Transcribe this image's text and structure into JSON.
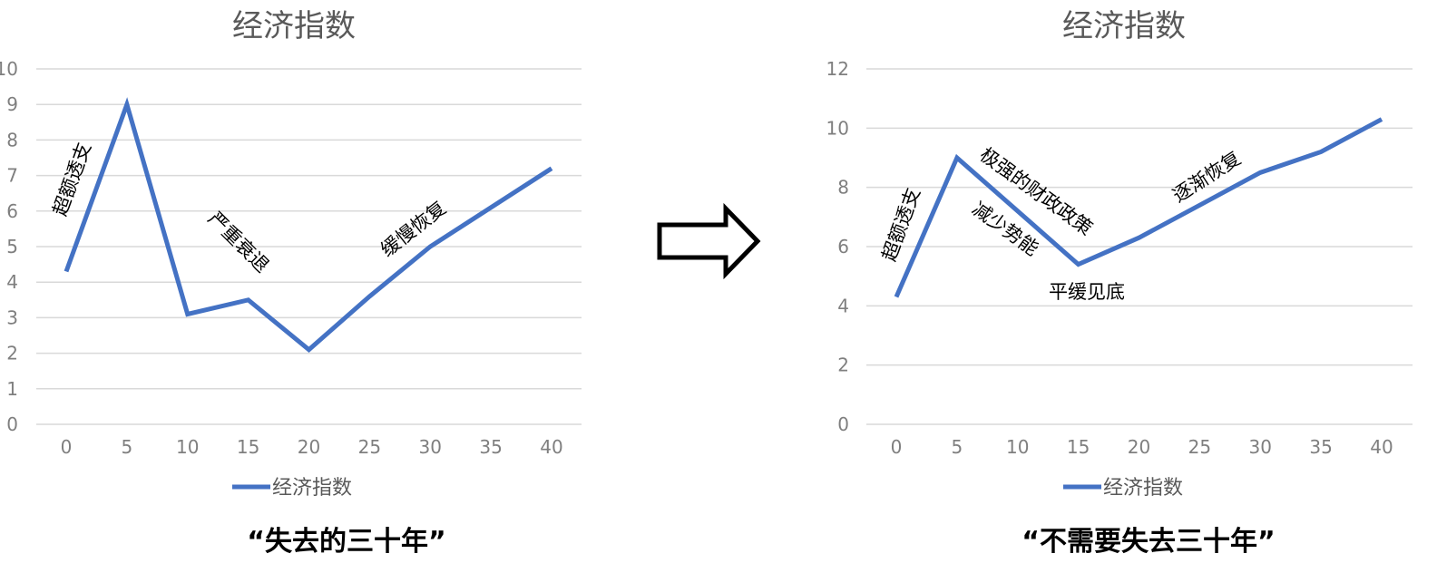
{
  "chart_data": [
    {
      "type": "line",
      "title": "经济指数",
      "x": [
        0,
        5,
        10,
        15,
        20,
        25,
        30,
        35,
        40
      ],
      "x_ticks": [
        "0",
        "5",
        "10",
        "15",
        "20",
        "25",
        "30",
        "35",
        "40"
      ],
      "y_ticks": [
        "0",
        "1",
        "2",
        "3",
        "4",
        "5",
        "6",
        "7",
        "8",
        "9",
        "10"
      ],
      "ylim": [
        0,
        10
      ],
      "grid": true,
      "legend": "bottom",
      "series": [
        {
          "name": "经济指数",
          "color": "#4472c4",
          "points": [
            [
              0,
              4.3
            ],
            [
              5,
              9.0
            ],
            [
              10,
              3.1
            ],
            [
              15,
              3.5
            ],
            [
              20,
              2.1
            ],
            [
              25,
              3.6
            ],
            [
              30,
              5.0
            ],
            [
              35,
              6.1
            ],
            [
              40,
              7.2
            ]
          ]
        }
      ],
      "annotations": [
        "超额透支",
        "严重衰退",
        "缓慢恢复"
      ],
      "caption": "“失去的三十年”"
    },
    {
      "type": "line",
      "title": "经济指数",
      "x": [
        0,
        5,
        10,
        15,
        20,
        25,
        30,
        35,
        40
      ],
      "x_ticks": [
        "0",
        "5",
        "10",
        "15",
        "20",
        "25",
        "30",
        "35",
        "40"
      ],
      "y_ticks": [
        "0",
        "2",
        "4",
        "6",
        "8",
        "10",
        "12"
      ],
      "ylim": [
        0,
        12
      ],
      "grid": true,
      "legend": "bottom",
      "series": [
        {
          "name": "经济指数",
          "color": "#4472c4",
          "points": [
            [
              0,
              4.3
            ],
            [
              5,
              9.0
            ],
            [
              15,
              5.4
            ],
            [
              20,
              6.3
            ],
            [
              25,
              7.4
            ],
            [
              30,
              8.5
            ],
            [
              35,
              9.2
            ],
            [
              40,
              10.3
            ]
          ]
        }
      ],
      "annotations": [
        "超额透支",
        "极强的财政政策",
        "减少势能",
        "平缓见底",
        "逐渐恢复"
      ],
      "caption": "“不需要失去三十年”"
    }
  ],
  "arrow_icon": "right-arrow-outline-icon"
}
